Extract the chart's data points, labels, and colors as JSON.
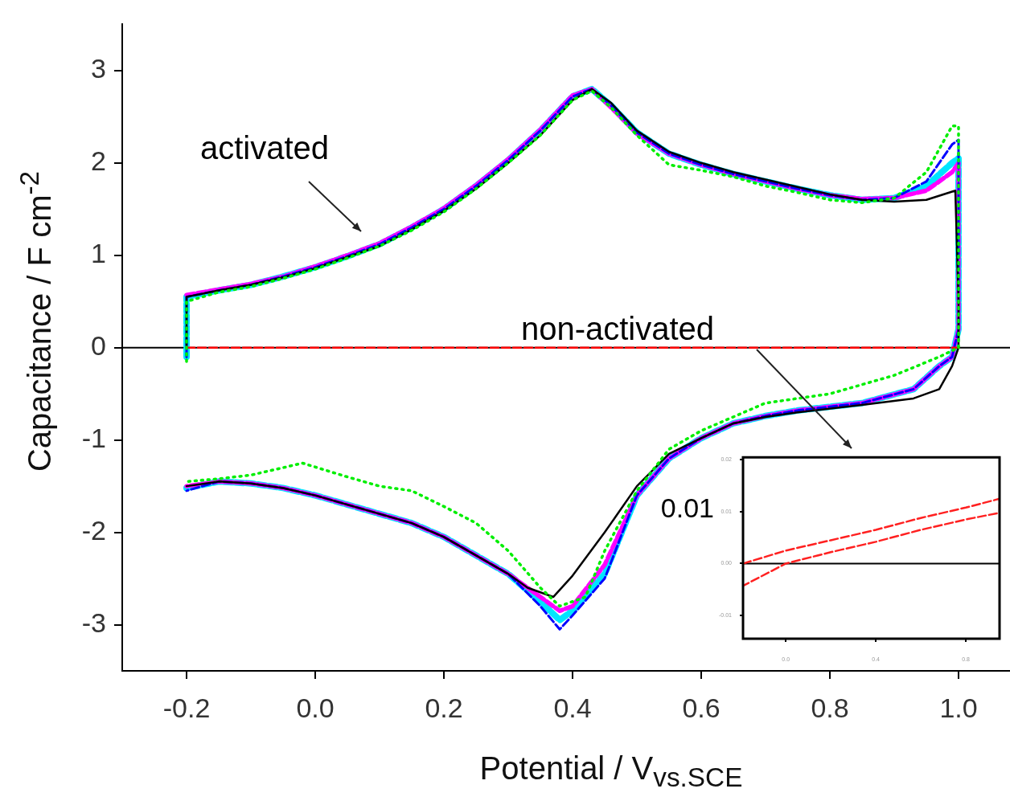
{
  "chart_data": [
    {
      "type": "line",
      "xlabel": "Potential / V$_{vs.SCE}$",
      "ylabel": "Capacitance / F cm$^{-2}$",
      "xlim": [
        -0.3,
        1.08
      ],
      "ylim": [
        -3.5,
        3.5
      ],
      "xticks": [
        {
          "value": -0.2,
          "label": "-0.2"
        },
        {
          "value": 0,
          "label": "0.0"
        },
        0.2,
        0.4,
        0.6,
        0.8,
        {
          "value": 1,
          "label": "1.0"
        }
      ],
      "yticks": [
        -3,
        -2,
        -1,
        0,
        1,
        2,
        3
      ],
      "grid": false,
      "marker": "none",
      "ref_lines": [
        {
          "axis": "y",
          "value": 0,
          "color": "#000000"
        }
      ],
      "annotations": [
        {
          "text": "activated",
          "x": 0.08,
          "y": 1.1
        },
        {
          "text": "non-activated",
          "x": 0.47,
          "y": 0
        }
      ],
      "series": [
        {
          "color": "#ff0000",
          "line_style": "dashed",
          "x": [
            -0.2,
            1.0
          ],
          "values": [
            0,
            0
          ]
        },
        {
          "color": "#0000ff",
          "line_style": "dashed",
          "x": [
            -0.2,
            -0.2,
            -0.15,
            -0.1,
            -0.05,
            0.0,
            0.05,
            0.1,
            0.15,
            0.2,
            0.25,
            0.3,
            0.35,
            0.4,
            0.43,
            0.46,
            0.5,
            0.55,
            0.6,
            0.65,
            0.7,
            0.75,
            0.8,
            0.85,
            0.9,
            0.95,
            0.99,
            1.0,
            1.0,
            0.99,
            0.97,
            0.93,
            0.85,
            0.75,
            0.7,
            0.65,
            0.6,
            0.55,
            0.5,
            0.45,
            0.4,
            0.38,
            0.35,
            0.3,
            0.25,
            0.2,
            0.15,
            0.1,
            0.05,
            0.0,
            -0.05,
            -0.1,
            -0.15,
            -0.2
          ],
          "values": [
            -0.1,
            0.55,
            0.62,
            0.68,
            0.77,
            0.87,
            0.99,
            1.12,
            1.3,
            1.5,
            1.75,
            2.03,
            2.35,
            2.72,
            2.8,
            2.62,
            2.33,
            2.1,
            1.98,
            1.88,
            1.8,
            1.72,
            1.65,
            1.6,
            1.62,
            1.8,
            2.2,
            2.25,
            0.2,
            -0.1,
            -0.2,
            -0.45,
            -0.6,
            -0.68,
            -0.74,
            -0.82,
            -0.98,
            -1.2,
            -1.6,
            -2.5,
            -2.9,
            -3.05,
            -2.8,
            -2.45,
            -2.25,
            -2.05,
            -1.9,
            -1.8,
            -1.7,
            -1.6,
            -1.52,
            -1.47,
            -1.45,
            -1.55
          ]
        },
        {
          "color": "#00e5ff",
          "line_style": "dashed",
          "x": [
            -0.2,
            -0.2,
            -0.15,
            -0.1,
            -0.05,
            0.0,
            0.05,
            0.1,
            0.15,
            0.2,
            0.25,
            0.3,
            0.35,
            0.4,
            0.43,
            0.46,
            0.5,
            0.55,
            0.6,
            0.65,
            0.7,
            0.75,
            0.8,
            0.85,
            0.9,
            0.95,
            0.99,
            1.0,
            1.0,
            0.99,
            0.97,
            0.93,
            0.85,
            0.75,
            0.7,
            0.65,
            0.6,
            0.55,
            0.5,
            0.45,
            0.4,
            0.38,
            0.35,
            0.3,
            0.25,
            0.2,
            0.15,
            0.1,
            0.05,
            0.0,
            -0.05,
            -0.1,
            -0.15,
            -0.2
          ],
          "values": [
            -0.1,
            0.55,
            0.62,
            0.68,
            0.77,
            0.87,
            0.99,
            1.12,
            1.3,
            1.5,
            1.75,
            2.03,
            2.35,
            2.72,
            2.8,
            2.62,
            2.33,
            2.1,
            1.98,
            1.88,
            1.8,
            1.72,
            1.65,
            1.6,
            1.62,
            1.75,
            2.0,
            2.05,
            0.2,
            -0.1,
            -0.2,
            -0.45,
            -0.6,
            -0.68,
            -0.74,
            -0.82,
            -0.98,
            -1.2,
            -1.6,
            -2.45,
            -2.85,
            -2.95,
            -2.75,
            -2.45,
            -2.25,
            -2.05,
            -1.9,
            -1.8,
            -1.7,
            -1.6,
            -1.52,
            -1.47,
            -1.45,
            -1.52
          ]
        },
        {
          "color": "#ff00ff",
          "line_style": "dashed",
          "x": [
            -0.2,
            -0.15,
            -0.1,
            -0.05,
            0.0,
            0.05,
            0.1,
            0.15,
            0.2,
            0.25,
            0.3,
            0.35,
            0.4,
            0.43,
            0.46,
            0.5,
            0.55,
            0.6,
            0.65,
            0.7,
            0.75,
            0.8,
            0.85,
            0.9,
            0.95,
            0.99,
            1.0,
            1.0,
            0.99,
            0.97,
            0.93,
            0.85,
            0.75,
            0.7,
            0.65,
            0.6,
            0.55,
            0.5,
            0.45,
            0.4,
            0.38,
            0.35,
            0.3,
            0.25,
            0.2,
            0.15,
            0.1,
            0.05,
            0.0,
            -0.05,
            -0.1,
            -0.15,
            -0.2
          ],
          "values": [
            0.57,
            0.63,
            0.69,
            0.77,
            0.88,
            1.0,
            1.13,
            1.31,
            1.51,
            1.76,
            2.04,
            2.36,
            2.73,
            2.8,
            2.6,
            2.32,
            2.1,
            1.98,
            1.88,
            1.8,
            1.72,
            1.65,
            1.61,
            1.62,
            1.7,
            1.9,
            2.0,
            0.2,
            -0.1,
            -0.2,
            -0.45,
            -0.6,
            -0.68,
            -0.74,
            -0.82,
            -0.98,
            -1.2,
            -1.6,
            -2.35,
            -2.8,
            -2.85,
            -2.7,
            -2.45,
            -2.25,
            -2.05,
            -1.9,
            -1.8,
            -1.7,
            -1.6,
            -1.52,
            -1.47,
            -1.45,
            -1.5
          ]
        },
        {
          "color": "#00ee00",
          "line_style": "dotted",
          "x": [
            -0.2,
            -0.2,
            -0.15,
            -0.1,
            -0.05,
            0.0,
            0.05,
            0.1,
            0.15,
            0.2,
            0.25,
            0.3,
            0.35,
            0.4,
            0.43,
            0.46,
            0.5,
            0.55,
            0.6,
            0.65,
            0.7,
            0.75,
            0.8,
            0.85,
            0.9,
            0.95,
            0.99,
            1.0,
            1.0,
            0.97,
            0.9,
            0.8,
            0.7,
            0.6,
            0.55,
            0.5,
            0.45,
            0.42,
            0.38,
            0.35,
            0.3,
            0.25,
            0.2,
            0.15,
            0.1,
            0.05,
            -0.02,
            -0.05,
            -0.1,
            -0.15,
            -0.2
          ],
          "values": [
            -0.15,
            0.5,
            0.6,
            0.66,
            0.75,
            0.85,
            0.97,
            1.1,
            1.27,
            1.47,
            1.72,
            2.0,
            2.3,
            2.68,
            2.78,
            2.6,
            2.3,
            1.98,
            1.92,
            1.85,
            1.75,
            1.68,
            1.6,
            1.57,
            1.62,
            1.9,
            2.4,
            2.4,
            0.0,
            -0.1,
            -0.3,
            -0.5,
            -0.6,
            -0.9,
            -1.1,
            -1.55,
            -2.2,
            -2.7,
            -2.8,
            -2.6,
            -2.2,
            -1.9,
            -1.72,
            -1.55,
            -1.5,
            -1.4,
            -1.25,
            -1.3,
            -1.38,
            -1.42,
            -1.45
          ]
        },
        {
          "color": "#000000",
          "line_style": "solid",
          "x": [
            -0.2,
            -0.2,
            -0.15,
            -0.1,
            -0.05,
            0.0,
            0.05,
            0.1,
            0.15,
            0.2,
            0.25,
            0.3,
            0.35,
            0.4,
            0.43,
            0.46,
            0.5,
            0.55,
            0.6,
            0.65,
            0.7,
            0.75,
            0.8,
            0.85,
            0.9,
            0.95,
            0.995,
            1.0,
            1.0,
            0.99,
            0.97,
            0.93,
            0.85,
            0.75,
            0.7,
            0.65,
            0.6,
            0.55,
            0.5,
            0.45,
            0.4,
            0.37,
            0.33,
            0.3,
            0.25,
            0.2,
            0.15,
            0.1,
            0.05,
            0.0,
            -0.05,
            -0.1,
            -0.15,
            -0.2
          ],
          "values": [
            0.0,
            0.55,
            0.62,
            0.68,
            0.76,
            0.86,
            0.98,
            1.1,
            1.28,
            1.48,
            1.72,
            2.0,
            2.3,
            2.68,
            2.8,
            2.65,
            2.35,
            2.12,
            2.0,
            1.9,
            1.82,
            1.74,
            1.66,
            1.6,
            1.58,
            1.6,
            1.7,
            0.5,
            0.0,
            -0.2,
            -0.45,
            -0.55,
            -0.62,
            -0.7,
            -0.75,
            -0.82,
            -0.98,
            -1.15,
            -1.5,
            -2.0,
            -2.47,
            -2.7,
            -2.6,
            -2.45,
            -2.25,
            -2.05,
            -1.9,
            -1.8,
            -1.7,
            -1.6,
            -1.52,
            -1.47,
            -1.45,
            -1.5
          ]
        }
      ]
    },
    {
      "type": "line",
      "xlim": [
        -0.19,
        0.95
      ],
      "ylim": [
        -0.0145,
        0.0205
      ],
      "xticks": [
        {
          "value": 0,
          "label": "0.0"
        },
        0.4,
        0.8
      ],
      "yticks": [
        {
          "value": -0.01,
          "label": "-0.01"
        },
        {
          "value": 0,
          "label": "0.00"
        },
        0.01,
        0.02
      ],
      "grid": false,
      "marker": "none",
      "ref_lines": [
        {
          "axis": "y",
          "value": 0,
          "color": "#000000"
        }
      ],
      "annotations": [
        "0.01"
      ],
      "series": [
        {
          "color": "#ff2020",
          "line_style": "dashed",
          "x": [
            -0.19,
            0.0,
            0.2,
            0.4,
            0.6,
            0.8,
            0.95,
            0.95,
            0.8,
            0.6,
            0.4,
            0.2,
            0.0,
            -0.19
          ],
          "values": [
            0.0,
            0.0025,
            0.0045,
            0.0065,
            0.0088,
            0.0108,
            0.0125,
            0.0098,
            0.0085,
            0.0065,
            0.0042,
            0.0022,
            0.0,
            -0.0043
          ]
        }
      ]
    }
  ]
}
